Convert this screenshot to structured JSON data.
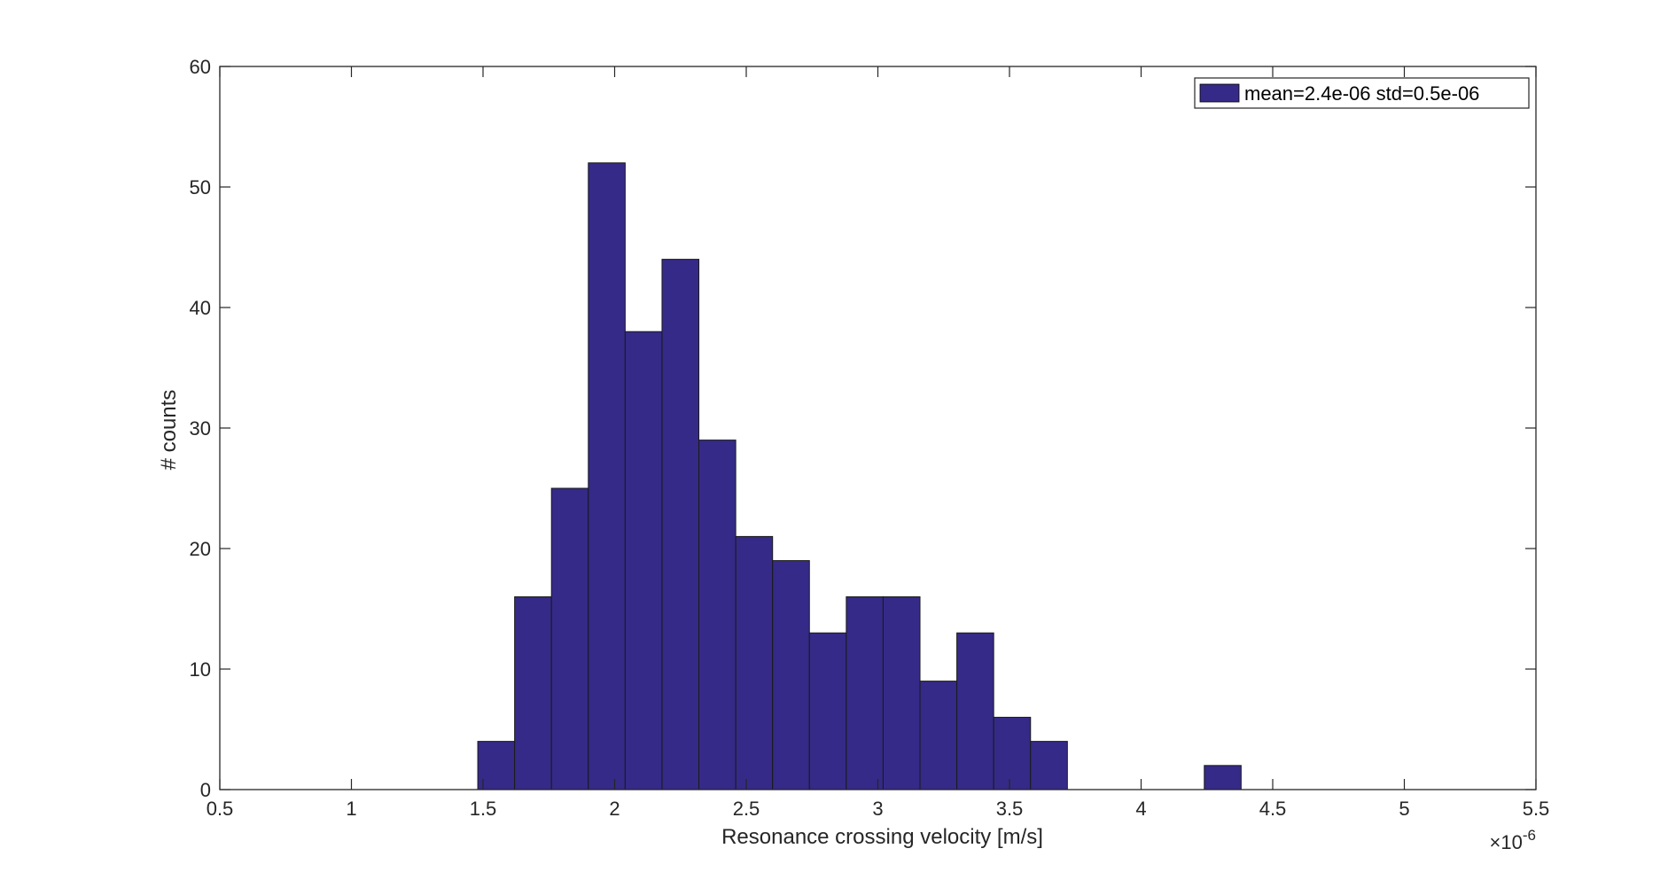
{
  "chart_data": {
    "type": "bar",
    "title": "",
    "xlabel": "Resonance crossing velocity [m/s]",
    "ylabel": "# counts",
    "x_exponent_label": "×10",
    "x_exponent_power": "-6",
    "xlim": [
      0.5,
      5.5
    ],
    "ylim": [
      0,
      60
    ],
    "xticks": [
      0.5,
      1,
      1.5,
      2,
      2.5,
      3,
      3.5,
      4,
      4.5,
      5,
      5.5
    ],
    "xtick_labels": [
      "0.5",
      "1",
      "1.5",
      "2",
      "2.5",
      "3",
      "3.5",
      "4",
      "4.5",
      "5",
      "5.5"
    ],
    "yticks": [
      0,
      10,
      20,
      30,
      40,
      50,
      60
    ],
    "ytick_labels": [
      "0",
      "10",
      "20",
      "30",
      "40",
      "50",
      "60"
    ],
    "grid": false,
    "legend_position": "top-right",
    "bar_color": "#352a87",
    "bins": [
      {
        "x0": 1.48,
        "x1": 1.62,
        "count": 4
      },
      {
        "x0": 1.62,
        "x1": 1.76,
        "count": 16
      },
      {
        "x0": 1.76,
        "x1": 1.9,
        "count": 25
      },
      {
        "x0": 1.9,
        "x1": 2.04,
        "count": 52
      },
      {
        "x0": 2.04,
        "x1": 2.18,
        "count": 38
      },
      {
        "x0": 2.18,
        "x1": 2.32,
        "count": 44
      },
      {
        "x0": 2.32,
        "x1": 2.46,
        "count": 29
      },
      {
        "x0": 2.46,
        "x1": 2.6,
        "count": 21
      },
      {
        "x0": 2.6,
        "x1": 2.74,
        "count": 19
      },
      {
        "x0": 2.74,
        "x1": 2.88,
        "count": 13
      },
      {
        "x0": 2.88,
        "x1": 3.02,
        "count": 16
      },
      {
        "x0": 3.02,
        "x1": 3.16,
        "count": 16
      },
      {
        "x0": 3.16,
        "x1": 3.3,
        "count": 9
      },
      {
        "x0": 3.3,
        "x1": 3.44,
        "count": 13
      },
      {
        "x0": 3.44,
        "x1": 3.58,
        "count": 6
      },
      {
        "x0": 3.58,
        "x1": 3.72,
        "count": 4
      },
      {
        "x0": 4.24,
        "x1": 4.38,
        "count": 2
      }
    ],
    "series": [
      {
        "name": "mean=2.4e-06 std=0.5e-06"
      }
    ]
  }
}
